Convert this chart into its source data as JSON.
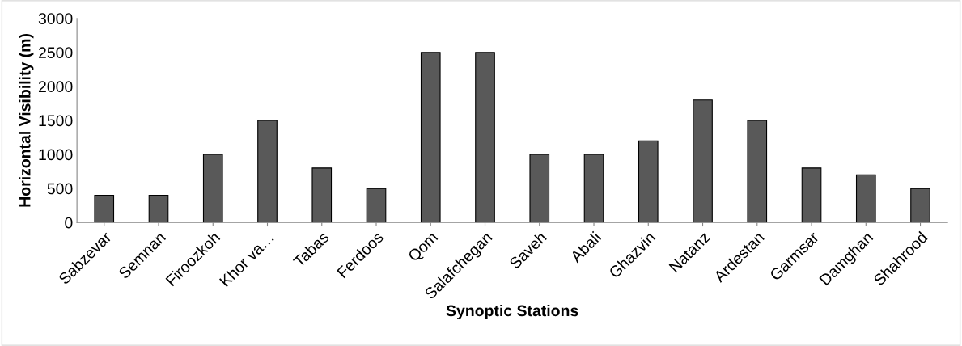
{
  "chart_data": {
    "type": "bar",
    "xlabel": "Synoptic Stations",
    "ylabel": "Horizontal Visibility (m)",
    "categories": [
      "Sabzevar",
      "Semnan",
      "Firoozkoh",
      "Khor va…",
      "Tabas",
      "Ferdoos",
      "Qom",
      "Salafchegan",
      "Saveh",
      "Abali",
      "Ghazvin",
      "Natanz",
      "Ardestan",
      "Garmsar",
      "Damghan",
      "Shahrood"
    ],
    "values": [
      400,
      400,
      1000,
      1500,
      800,
      500,
      2500,
      2500,
      1000,
      1000,
      1200,
      1800,
      1500,
      800,
      700,
      500
    ],
    "color": "#595959",
    "ylim": [
      0,
      3000
    ],
    "yticks": [
      0,
      500,
      1000,
      1500,
      2000,
      2500,
      3000
    ],
    "grid": false,
    "legend": false
  }
}
